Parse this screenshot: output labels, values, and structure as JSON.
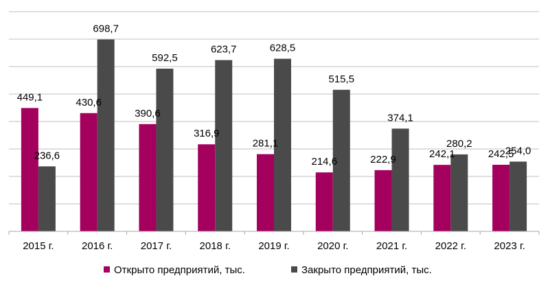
{
  "chart_data": {
    "type": "bar",
    "title": "",
    "xlabel": "",
    "ylabel": "",
    "ylim": [
      0,
      800
    ],
    "grid": true,
    "grid_step": 100,
    "legend_position": "bottom",
    "categories": [
      "2015 г.",
      "2016 г.",
      "2017 г.",
      "2018 г.",
      "2019 г.",
      "2020 г.",
      "2021 г.",
      "2022 г.",
      "2023 г."
    ],
    "series": [
      {
        "name": "Открыто предприятий, тыс.",
        "color": "#A4005E",
        "values": [
          449.1,
          430.6,
          390.6,
          316.9,
          281.1,
          214.6,
          222.9,
          242.1,
          242.5
        ],
        "labels": [
          "449,1",
          "430,6",
          "390,6",
          "316,9",
          "281,1",
          "214,6",
          "222,9",
          "242,1",
          "242,5"
        ]
      },
      {
        "name": "Закрыто предприятий, тыс.",
        "color": "#4A4A4A",
        "values": [
          236.6,
          698.7,
          592.5,
          623.7,
          628.5,
          515.5,
          374.1,
          280.2,
          254.0
        ],
        "labels": [
          "236,6",
          "698,7",
          "592,5",
          "623,7",
          "628,5",
          "515,5",
          "374,1",
          "280,2",
          "254,0"
        ]
      }
    ]
  }
}
